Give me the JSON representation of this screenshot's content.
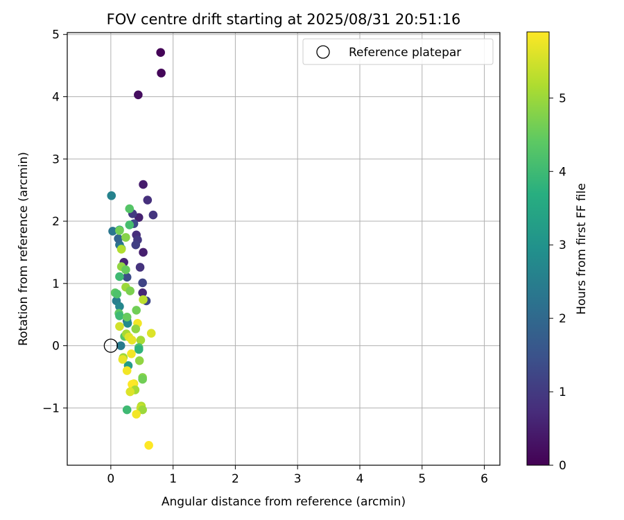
{
  "chart_data": {
    "type": "scatter",
    "title": "FOV centre drift starting at 2025/08/31 20:51:16",
    "xlabel": "Angular distance from reference (arcmin)",
    "ylabel": "Rotation from reference (arcmin)",
    "xlim": [
      -0.7,
      6.25
    ],
    "ylim": [
      -1.92,
      5.03
    ],
    "xticks": [
      0,
      1,
      2,
      3,
      4,
      5,
      6
    ],
    "yticks": [
      -1,
      0,
      1,
      2,
      3,
      4,
      5
    ],
    "xtick_labels": [
      "0",
      "1",
      "2",
      "3",
      "4",
      "5",
      "6"
    ],
    "ytick_labels": [
      "−1",
      "0",
      "1",
      "2",
      "3",
      "4",
      "5"
    ],
    "grid": true,
    "colormap": "viridis",
    "colorbar": {
      "label": "Hours from first FF file",
      "range": [
        0,
        5.9
      ],
      "ticks": [
        0,
        1,
        2,
        3,
        4,
        5
      ],
      "tick_labels": [
        "0",
        "1",
        "2",
        "3",
        "4",
        "5"
      ]
    },
    "legend": {
      "position": "top-right",
      "label": "Reference platepar"
    },
    "reference_point": {
      "x": 0.0,
      "y": 0.0
    },
    "points": [
      {
        "x": 0.8,
        "y": 4.71,
        "h": 0.05
      },
      {
        "x": 0.81,
        "y": 4.38,
        "h": 0.1
      },
      {
        "x": 0.44,
        "y": 4.03,
        "h": 0.2
      },
      {
        "x": 0.52,
        "y": 2.59,
        "h": 0.45
      },
      {
        "x": 0.59,
        "y": 2.34,
        "h": 0.8
      },
      {
        "x": 0.68,
        "y": 2.1,
        "h": 0.9
      },
      {
        "x": 0.45,
        "y": 2.06,
        "h": 0.55
      },
      {
        "x": 0.35,
        "y": 2.12,
        "h": 1.0
      },
      {
        "x": 0.37,
        "y": 1.96,
        "h": 1.3
      },
      {
        "x": 0.41,
        "y": 1.78,
        "h": 0.75
      },
      {
        "x": 0.43,
        "y": 1.7,
        "h": 0.95
      },
      {
        "x": 0.4,
        "y": 1.62,
        "h": 1.1
      },
      {
        "x": 0.52,
        "y": 1.5,
        "h": 0.5
      },
      {
        "x": 0.21,
        "y": 1.34,
        "h": 0.6
      },
      {
        "x": 0.47,
        "y": 1.26,
        "h": 0.85
      },
      {
        "x": 0.26,
        "y": 1.1,
        "h": 1.4
      },
      {
        "x": 0.51,
        "y": 1.01,
        "h": 1.2
      },
      {
        "x": 0.51,
        "y": 0.85,
        "h": 0.65
      },
      {
        "x": 0.57,
        "y": 0.72,
        "h": 1.25
      },
      {
        "x": 0.01,
        "y": 2.41,
        "h": 2.6
      },
      {
        "x": 0.03,
        "y": 1.84,
        "h": 2.3
      },
      {
        "x": 0.14,
        "y": 1.86,
        "h": 3.3
      },
      {
        "x": 0.14,
        "y": 1.62,
        "h": 2.2
      },
      {
        "x": 0.17,
        "y": 1.56,
        "h": 2.9
      },
      {
        "x": 0.12,
        "y": 1.72,
        "h": 1.9
      },
      {
        "x": 0.09,
        "y": 0.72,
        "h": 2.5
      },
      {
        "x": 0.14,
        "y": 0.63,
        "h": 2.7
      },
      {
        "x": 0.26,
        "y": 0.4,
        "h": 2.1
      },
      {
        "x": 0.27,
        "y": 0.36,
        "h": 2.8
      },
      {
        "x": 0.16,
        "y": 0.0,
        "h": 2.4
      },
      {
        "x": 0.28,
        "y": -0.32,
        "h": 3.2
      },
      {
        "x": 0.3,
        "y": 2.2,
        "h": 4.3
      },
      {
        "x": 0.3,
        "y": 1.94,
        "h": 4.1
      },
      {
        "x": 0.14,
        "y": 1.85,
        "h": 4.6
      },
      {
        "x": 0.17,
        "y": 1.55,
        "h": 5.2
      },
      {
        "x": 0.24,
        "y": 1.74,
        "h": 4.8
      },
      {
        "x": 0.17,
        "y": 1.27,
        "h": 4.9
      },
      {
        "x": 0.24,
        "y": 1.22,
        "h": 4.5
      },
      {
        "x": 0.14,
        "y": 1.11,
        "h": 4.0
      },
      {
        "x": 0.24,
        "y": 0.94,
        "h": 5.0
      },
      {
        "x": 0.31,
        "y": 0.88,
        "h": 4.7
      },
      {
        "x": 0.07,
        "y": 0.85,
        "h": 4.4
      },
      {
        "x": 0.1,
        "y": 0.83,
        "h": 4.2
      },
      {
        "x": 0.52,
        "y": 0.74,
        "h": 5.3
      },
      {
        "x": 0.41,
        "y": 0.57,
        "h": 4.6
      },
      {
        "x": 0.13,
        "y": 0.52,
        "h": 4.4
      },
      {
        "x": 0.14,
        "y": 0.48,
        "h": 4.0
      },
      {
        "x": 0.26,
        "y": 0.46,
        "h": 4.5
      },
      {
        "x": 0.43,
        "y": 0.36,
        "h": 5.8
      },
      {
        "x": 0.14,
        "y": 0.31,
        "h": 5.5
      },
      {
        "x": 0.4,
        "y": 0.27,
        "h": 4.9
      },
      {
        "x": 0.22,
        "y": 0.15,
        "h": 4.3
      },
      {
        "x": 0.25,
        "y": 0.19,
        "h": 5.1
      },
      {
        "x": 0.29,
        "y": 0.14,
        "h": 5.6
      },
      {
        "x": 0.34,
        "y": 0.09,
        "h": 5.7
      },
      {
        "x": 0.48,
        "y": 0.09,
        "h": 5.1
      },
      {
        "x": 0.65,
        "y": 0.2,
        "h": 5.6
      },
      {
        "x": 0.45,
        "y": -0.03,
        "h": 4.2
      },
      {
        "x": 0.45,
        "y": -0.06,
        "h": 3.8
      },
      {
        "x": 0.33,
        "y": -0.13,
        "h": 5.8
      },
      {
        "x": 0.2,
        "y": -0.19,
        "h": 5.0
      },
      {
        "x": 0.19,
        "y": -0.22,
        "h": 5.7
      },
      {
        "x": 0.46,
        "y": -0.24,
        "h": 4.9
      },
      {
        "x": 0.26,
        "y": -0.4,
        "h": 5.8
      },
      {
        "x": 0.51,
        "y": -0.51,
        "h": 4.8
      },
      {
        "x": 0.51,
        "y": -0.54,
        "h": 4.6
      },
      {
        "x": 0.37,
        "y": -0.61,
        "h": 5.8
      },
      {
        "x": 0.34,
        "y": -0.62,
        "h": 5.9
      },
      {
        "x": 0.39,
        "y": -0.71,
        "h": 5.1
      },
      {
        "x": 0.31,
        "y": -0.74,
        "h": 5.6
      },
      {
        "x": 0.49,
        "y": -0.97,
        "h": 5.2
      },
      {
        "x": 0.48,
        "y": -1.0,
        "h": 5.4
      },
      {
        "x": 0.51,
        "y": -1.03,
        "h": 5.0
      },
      {
        "x": 0.26,
        "y": -1.03,
        "h": 4.0
      },
      {
        "x": 0.41,
        "y": -1.1,
        "h": 5.8
      },
      {
        "x": 0.61,
        "y": -1.6,
        "h": 5.9
      }
    ]
  }
}
